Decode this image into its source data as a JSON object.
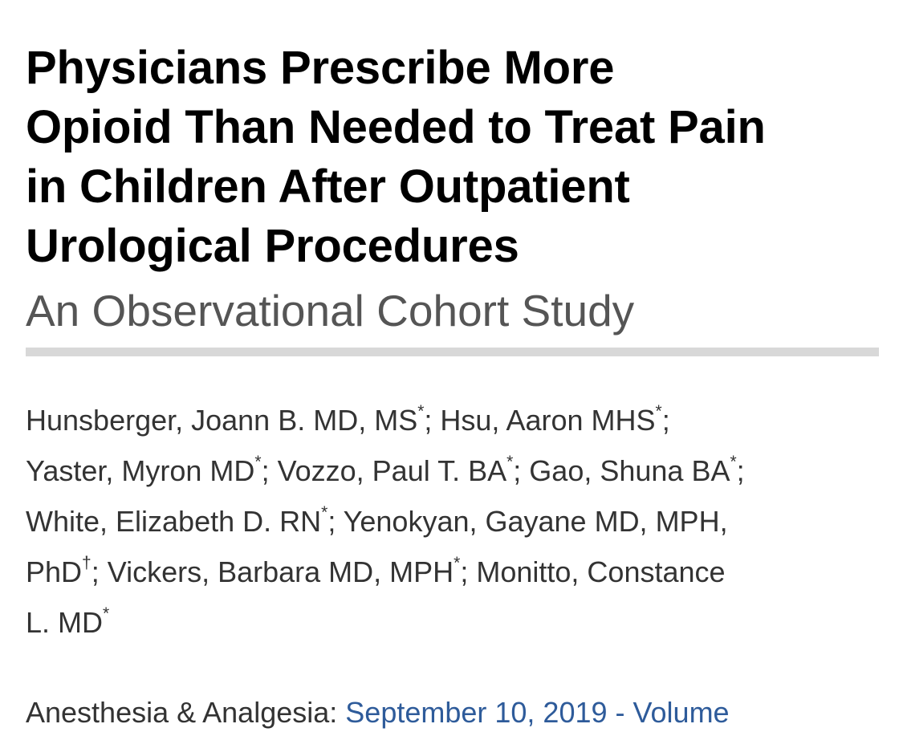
{
  "article": {
    "title_lines": [
      "Physicians Prescribe More",
      "Opioid Than Needed to Treat Pain",
      "in Children After Outpatient",
      "Urological Procedures"
    ],
    "subtitle": "An Observational Cohort Study",
    "author_lines": [
      [
        {
          "t": "Hunsberger, Joann B. MD, MS"
        },
        {
          "sup": "*"
        },
        {
          "t": "; Hsu, Aaron MHS"
        },
        {
          "sup": "*"
        },
        {
          "t": ";"
        }
      ],
      [
        {
          "t": "Yaster, Myron MD"
        },
        {
          "sup": "*"
        },
        {
          "t": "; Vozzo, Paul T. BA"
        },
        {
          "sup": "*"
        },
        {
          "t": "; Gao, Shuna BA"
        },
        {
          "sup": "*"
        },
        {
          "t": ";"
        }
      ],
      [
        {
          "t": "White, Elizabeth D. RN"
        },
        {
          "sup": "*"
        },
        {
          "t": "; Yenokyan, Gayane MD, MPH,"
        }
      ],
      [
        {
          "t": "PhD"
        },
        {
          "sup": "†"
        },
        {
          "t": "; Vickers, Barbara MD, MPH"
        },
        {
          "sup": "*"
        },
        {
          "t": "; Monitto, Constance"
        }
      ],
      [
        {
          "t": "L. MD"
        },
        {
          "sup": "*"
        }
      ]
    ],
    "journal": {
      "name": "Anesthesia & Analgesia:",
      "date_volume": "September 10, 2019 - Volume"
    }
  },
  "colors": {
    "title": "#000000",
    "subtitle": "#555555",
    "body_text": "#333333",
    "link": "#2e5b9a",
    "rule": "#d8d8d8"
  }
}
